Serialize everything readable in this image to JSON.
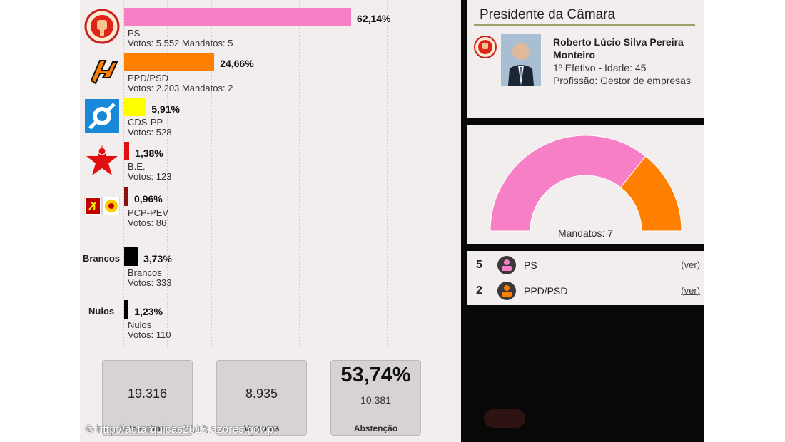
{
  "parties": [
    {
      "name": "PS",
      "pct": "62,14%",
      "pct_value": 62.14,
      "votes_line": "Votos: 5.552 Mandatos: 5",
      "color": "#f77fc6",
      "logo": "ps-fist-rose-icon"
    },
    {
      "name": "PPD/PSD",
      "pct": "24,66%",
      "pct_value": 24.66,
      "votes_line": "Votos: 2.203 Mandatos: 2",
      "color": "#ff8000",
      "logo": "psd-arrows-icon"
    },
    {
      "name": "CDS-PP",
      "pct": "5,91%",
      "pct_value": 5.91,
      "votes_line": "Votos: 528",
      "color": "#ffff00",
      "logo": "cds-pp-icon"
    },
    {
      "name": "B.E.",
      "pct": "1,38%",
      "pct_value": 1.38,
      "votes_line": "Votos: 123",
      "color": "#e01010",
      "logo": "be-star-icon"
    },
    {
      "name": "PCP-PEV",
      "pct": "0,96%",
      "pct_value": 0.96,
      "votes_line": "Votos: 86",
      "color": "#8b1010",
      "logo": "pcp-pev-icon"
    }
  ],
  "others": [
    {
      "side_label": "Brancos",
      "name": "Brancos",
      "pct": "3,73%",
      "pct_value": 3.73,
      "votes_line": "Votos: 333",
      "color": "#000000"
    },
    {
      "side_label": "Nulos",
      "name": "Nulos",
      "pct": "1,23%",
      "pct_value": 1.23,
      "votes_line": "Votos: 110",
      "color": "#000000"
    }
  ],
  "stats": {
    "inscritos_value": "19.316",
    "inscritos_label": "Inscritos",
    "votantes_value": "8.935",
    "votantes_label": "Votantes",
    "abstencao_pct": "53,74%",
    "abstencao_value": "10.381",
    "abstencao_label": "Abstenção"
  },
  "watermark": "© http://autarquicas2013.azores.gov.pt",
  "president": {
    "title": "Presidente da Câmara",
    "name": "Roberto Lúcio Silva Pereira Monteiro",
    "position": "1º Efetivo - Idade: 45",
    "profession": "Profissão: Gestor de empresas"
  },
  "mandates": {
    "label": "Mandatos: 7",
    "total": 7,
    "segments": [
      {
        "party": "PS",
        "seats": 5,
        "color": "#f77fc6"
      },
      {
        "party": "PPD/PSD",
        "seats": 2,
        "color": "#ff8000"
      }
    ]
  },
  "seats": [
    {
      "count": "5",
      "party": "PS",
      "link": "(ver)",
      "color": "#f77fc6"
    },
    {
      "count": "2",
      "party": "PPD/PSD",
      "link": "(ver)",
      "color": "#ff8000"
    }
  ]
}
